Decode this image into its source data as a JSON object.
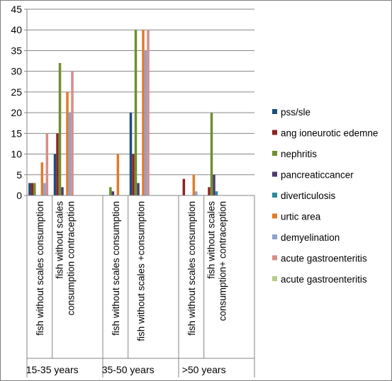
{
  "chart_data": {
    "type": "bar",
    "title": "",
    "xlabel": "",
    "ylabel": "",
    "ylim": [
      0,
      45
    ],
    "yticks": [
      0,
      5,
      10,
      15,
      20,
      25,
      30,
      35,
      40,
      45
    ],
    "grid": true,
    "legend_position": "right",
    "groups": [
      {
        "label": "15-35 years",
        "categories": [
          "fish without scales consumption",
          "fish without scales consumption contraception"
        ]
      },
      {
        "label": "35-50 years",
        "categories": [
          "fish without scales consumption",
          "fish without scales +consumption"
        ]
      },
      {
        "label": ">50 years",
        "categories": [
          "fish without scales consumption",
          "fish without scales consumption+ contraception"
        ]
      }
    ],
    "series": [
      {
        "name": "pss/sle",
        "color": "#1f4e79",
        "values": [
          3,
          10,
          null,
          20,
          null,
          null
        ]
      },
      {
        "name": "ang ioneurotic edemne",
        "color": "#8b2323",
        "values": [
          3,
          15,
          null,
          10,
          4,
          2
        ]
      },
      {
        "name": "nephritis",
        "color": "#6f8f2f",
        "values": [
          3,
          32,
          2,
          40,
          null,
          20
        ]
      },
      {
        "name": "pancreaticcancer",
        "color": "#4b3a6b",
        "values": [
          null,
          2,
          1,
          3,
          null,
          5
        ]
      },
      {
        "name": "diverticulosis",
        "color": "#2a8a9a",
        "values": [
          null,
          null,
          null,
          null,
          null,
          1
        ]
      },
      {
        "name": "urtic area",
        "color": "#e07b2a",
        "values": [
          8,
          25,
          10,
          40,
          5,
          null
        ]
      },
      {
        "name": "demyelination",
        "color": "#8ea2d0",
        "values": [
          3,
          20,
          null,
          35,
          1,
          null
        ]
      },
      {
        "name": "acute gastroenteritis",
        "color": "#d88c8c",
        "values": [
          15,
          30,
          null,
          40,
          null,
          null
        ]
      },
      {
        "name": "acute gastroenteritis",
        "color": "#b7cc8a",
        "values": [
          null,
          null,
          null,
          null,
          null,
          null
        ]
      }
    ]
  }
}
